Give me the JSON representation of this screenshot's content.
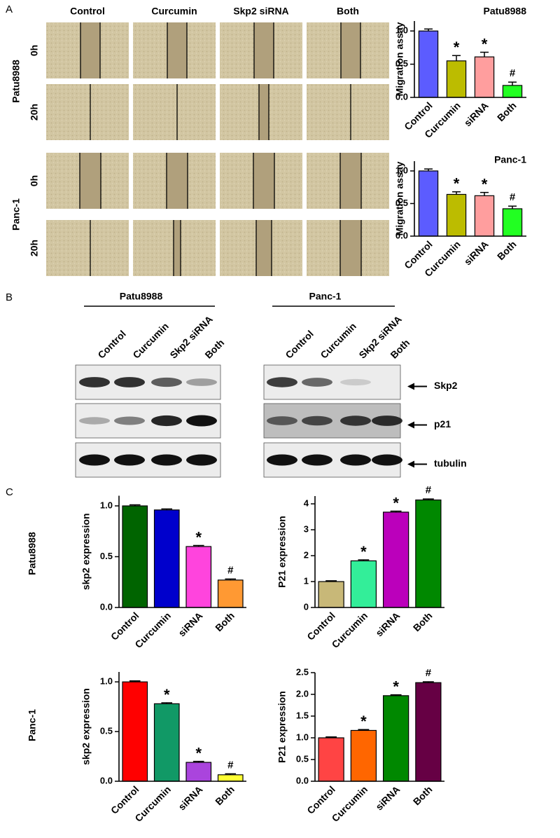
{
  "panel_labels": [
    "A",
    "B",
    "C"
  ],
  "panel_a": {
    "columns": [
      "Control",
      "Curcumin",
      "Skp2 siRNA",
      "Both"
    ],
    "groups": [
      {
        "name": "Patu8988",
        "rows": [
          "0h",
          "20h"
        ]
      },
      {
        "name": "Panc-1",
        "rows": [
          "0h",
          "20h"
        ]
      }
    ]
  },
  "panel_b": {
    "blots": [
      {
        "name": "Patu8988",
        "lanes": [
          "Control",
          "Curcumin",
          "Skp2 siRNA",
          "Both"
        ]
      },
      {
        "name": "Panc-1",
        "lanes": [
          "Control",
          "Curcumin",
          "Skp2 siRNA",
          "Both"
        ]
      }
    ],
    "proteins": [
      "Skp2",
      "p21",
      "tubulin"
    ]
  },
  "panel_c_rows": [
    "Patu8988",
    "Panc-1"
  ],
  "chart_data": [
    {
      "type": "bar",
      "title": "Patu8988",
      "y_label": "Migration assay",
      "categories": [
        "Control",
        "Curcumin",
        "siRNA",
        "Both"
      ],
      "values": [
        1.0,
        0.55,
        0.61,
        0.18
      ],
      "errors": [
        0.03,
        0.08,
        0.07,
        0.05
      ],
      "annotations": [
        null,
        "*",
        "*",
        "#"
      ],
      "colors": [
        "#5c5cff",
        "#bcbc00",
        "#ff9e9e",
        "#22ff22"
      ],
      "ylim": [
        0,
        1.15
      ],
      "yticks": [
        {
          "value": 0,
          "label": "0.0"
        },
        {
          "value": 0.5,
          "label": "0.5"
        },
        {
          "value": 1,
          "label": "1.0"
        }
      ]
    },
    {
      "type": "bar",
      "title": "Panc-1",
      "y_label": "Migration assay",
      "categories": [
        "Control",
        "Curcumin",
        "siRNA",
        "Both"
      ],
      "values": [
        1.0,
        0.64,
        0.62,
        0.42
      ],
      "errors": [
        0.03,
        0.04,
        0.05,
        0.04
      ],
      "annotations": [
        null,
        "*",
        "*",
        "#"
      ],
      "colors": [
        "#5c5cff",
        "#bcbc00",
        "#ff9e9e",
        "#22ff22"
      ],
      "ylim": [
        0,
        1.15
      ],
      "yticks": [
        {
          "value": 0,
          "label": "0.0"
        },
        {
          "value": 0.5,
          "label": "0.5"
        },
        {
          "value": 1,
          "label": "1.0"
        }
      ]
    },
    {
      "type": "bar",
      "y_label": "skp2 expression",
      "categories": [
        "Control",
        "Curcumin",
        "siRNA",
        "Both"
      ],
      "values": [
        1.0,
        0.96,
        0.6,
        0.27
      ],
      "errors": [
        0.01,
        0.01,
        0.01,
        0.01
      ],
      "annotations": [
        null,
        null,
        "*",
        "#"
      ],
      "colors": [
        "#006400",
        "#0000cc",
        "#ff44dd",
        "#ff9933"
      ],
      "ylim": [
        0,
        1.1
      ],
      "yticks": [
        {
          "value": 0,
          "label": "0.0"
        },
        {
          "value": 0.5,
          "label": "0.5"
        },
        {
          "value": 1,
          "label": "1.0"
        }
      ]
    },
    {
      "type": "bar",
      "y_label": "P21 expression",
      "categories": [
        "Control",
        "Curcumin",
        "siRNA",
        "Both"
      ],
      "values": [
        1.0,
        1.8,
        3.68,
        4.15
      ],
      "errors": [
        0.03,
        0.04,
        0.04,
        0.04
      ],
      "annotations": [
        null,
        "*",
        "*",
        "#"
      ],
      "colors": [
        "#c8b878",
        "#33ee99",
        "#bb00bb",
        "#008800"
      ],
      "ylim": [
        0,
        4.3
      ],
      "yticks": [
        0,
        1,
        2,
        3,
        4
      ]
    },
    {
      "type": "bar",
      "y_label": "skp2 expression",
      "categories": [
        "Control",
        "Curcumin",
        "siRNA",
        "Both"
      ],
      "values": [
        1.0,
        0.78,
        0.19,
        0.065
      ],
      "errors": [
        0.01,
        0.01,
        0.01,
        0.01
      ],
      "annotations": [
        null,
        "*",
        "*",
        "#"
      ],
      "colors": [
        "#ff0000",
        "#119966",
        "#aa44dd",
        "#ffff33"
      ],
      "ylim": [
        0,
        1.1
      ],
      "yticks": [
        {
          "value": 0,
          "label": "0.0"
        },
        {
          "value": 0.5,
          "label": "0.5"
        },
        {
          "value": 1,
          "label": "1.0"
        }
      ]
    },
    {
      "type": "bar",
      "y_label": "P21 expression",
      "categories": [
        "Control",
        "Curcumin",
        "siRNA",
        "Both"
      ],
      "values": [
        1.0,
        1.17,
        1.97,
        2.27
      ],
      "errors": [
        0.02,
        0.02,
        0.02,
        0.02
      ],
      "annotations": [
        null,
        "*",
        "*",
        "#"
      ],
      "colors": [
        "#ff4444",
        "#ff6600",
        "#008800",
        "#660044"
      ],
      "ylim": [
        0,
        2.5
      ],
      "yticks": [
        {
          "value": 0,
          "label": "0.0"
        },
        {
          "value": 0.5,
          "label": "0.5"
        },
        {
          "value": 1,
          "label": "1.0"
        },
        {
          "value": 1.5,
          "label": "1.5"
        },
        {
          "value": 2,
          "label": "2.0"
        },
        {
          "value": 2.5,
          "label": "2.5"
        }
      ]
    }
  ]
}
